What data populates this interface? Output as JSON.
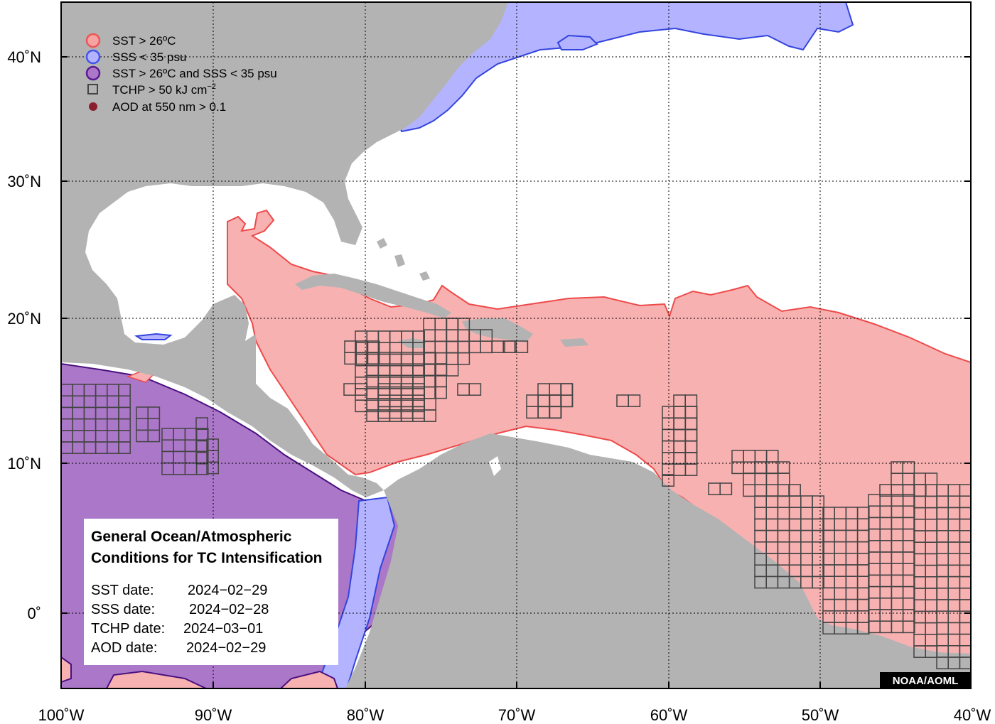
{
  "legend": {
    "items": [
      {
        "label": "SST > 26ºC",
        "fill": "#f5a3a3",
        "stroke": "#ee5555",
        "shape": "circle"
      },
      {
        "label": "SSS < 35 psu",
        "fill": "#b3b3ff",
        "stroke": "#4455ee",
        "shape": "circle"
      },
      {
        "label": "SST > 26ºC and SSS < 35 psu",
        "fill": "#ab77c8",
        "stroke": "#5a1a90",
        "shape": "circle"
      },
      {
        "label": "TCHP > 50 kJ cm",
        "sup": "−2",
        "fill": "none",
        "stroke": "#444444",
        "shape": "square"
      },
      {
        "label": "AOD at 550 nm > 0.1",
        "fill": "#8a1f2e",
        "stroke": "#8a1f2e",
        "shape": "dot"
      }
    ]
  },
  "info_box": {
    "title_line1": "General Ocean/Atmospheric",
    "title_line2": "Conditions for TC Intensification",
    "sst_label": "SST date:",
    "sst_date": "2024−02−29",
    "sss_label": "SSS date:",
    "sss_date": "2024−02−28",
    "tchp_label": "TCHP date:",
    "tchp_date": "2024−03−01",
    "aod_label": "AOD date:",
    "aod_date": "2024−02−29"
  },
  "credit": "NOAA/AOML",
  "axes": {
    "x_ticks": [
      "100˚W",
      "90˚W",
      "80˚W",
      "70˚W",
      "60˚W",
      "50˚W",
      "40˚W"
    ],
    "y_ticks": [
      "40˚N",
      "30˚N",
      "20˚N",
      "10˚N",
      "0˚"
    ]
  },
  "colors": {
    "land": "#b3b3b3",
    "ocean": "#ffffff",
    "sst": "#f7b1b1",
    "sst_edge": "#ee4a4a",
    "sss": "#b3b3ff",
    "sss_edge": "#3344dd",
    "both": "#ab77c8",
    "both_edge": "#4a1080",
    "tchp": "#444444"
  }
}
